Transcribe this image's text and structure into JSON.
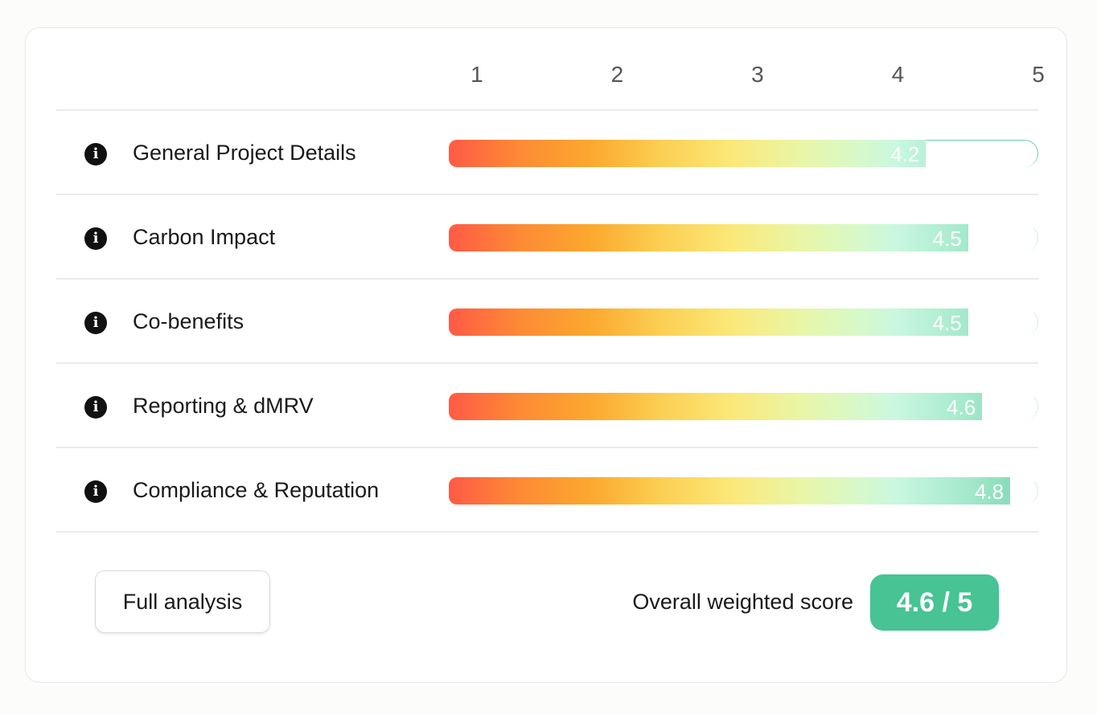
{
  "axis": {
    "ticks": [
      "1",
      "2",
      "3",
      "4",
      "5"
    ],
    "tick_values": [
      1,
      2,
      3,
      4,
      5
    ],
    "min": 0.8,
    "max": 5
  },
  "chart_data": {
    "type": "bar",
    "orientation": "horizontal",
    "categories": [
      "General Project Details",
      "Carbon Impact",
      "Co-benefits",
      "Reporting & dMRV",
      "Compliance & Reputation"
    ],
    "values": [
      4.2,
      4.5,
      4.5,
      4.6,
      4.8
    ],
    "value_labels": [
      "4.2",
      "4.5",
      "4.5",
      "4.6",
      "4.8"
    ],
    "xlim": [
      0.8,
      5
    ],
    "title": "",
    "xlabel": "",
    "ylabel": ""
  },
  "footer": {
    "button_label": "Full analysis",
    "overall_label": "Overall weighted score",
    "overall_value": "4.6 / 5"
  },
  "colors": {
    "accent": "#47c394",
    "gradient_start": "#ff5a45",
    "gradient_end": "#78d5ad"
  },
  "icons": {
    "row_icon": "info-icon"
  }
}
